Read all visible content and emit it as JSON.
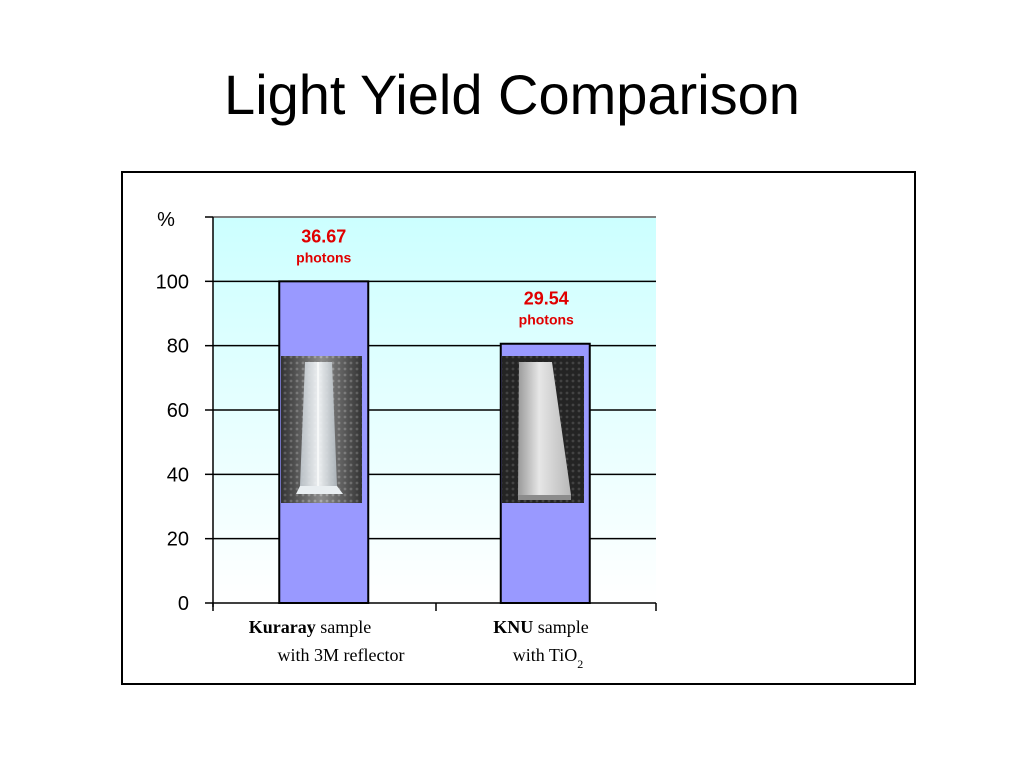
{
  "title": "Light Yield Comparison",
  "chart_data": {
    "type": "bar",
    "ylabel": "%",
    "ylim": [
      0,
      120
    ],
    "yticks": [
      0,
      20,
      40,
      60,
      80,
      100
    ],
    "grid": true,
    "categories": [
      {
        "bold": "Kuraray",
        "rest": " sample",
        "line2": "with 3M reflector",
        "sub": ""
      },
      {
        "bold": "KNU",
        "rest": " sample",
        "line2": "with TiO",
        "sub": "2"
      }
    ],
    "values": [
      100,
      80.6
    ],
    "data_labels": [
      {
        "value": "36.67",
        "unit": "photons"
      },
      {
        "value": "29.54",
        "unit": "photons"
      }
    ],
    "colors": {
      "bar": "#9999ff",
      "plot_top": "#ccffff",
      "plot_bottom": "#ffffff",
      "label": "#e00000"
    }
  },
  "images": [
    "kuraray-scintillator-bar-photo",
    "knu-scintillator-bar-photo"
  ]
}
